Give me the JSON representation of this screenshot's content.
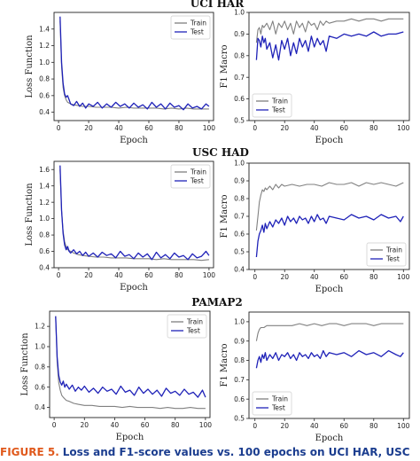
{
  "section_titles": [
    "UCI HAR",
    "USC HAD",
    "PAMAP2"
  ],
  "caption": {
    "label": "FIGURE 5.",
    "text": "Loss and F1-score values vs. 100 epochs on UCI HAR, USC"
  },
  "colors": {
    "train": "#808080",
    "test": "#1f22b8"
  },
  "chart_data": [
    {
      "type": "line",
      "dataset": "UCI HAR",
      "metric": "loss",
      "xlabel": "Epoch",
      "ylabel": "Loss Function",
      "xlim": [
        -3,
        103
      ],
      "ylim": [
        0.3,
        1.6
      ],
      "xticks": [
        0,
        20,
        40,
        60,
        80,
        100
      ],
      "yticks": [
        0.4,
        0.6,
        0.8,
        1.0,
        1.2,
        1.4
      ],
      "legend": "upper right",
      "series": [
        {
          "name": "Train",
          "x": [
            1,
            2,
            3,
            4,
            5,
            6,
            8,
            10,
            13,
            16,
            20,
            25,
            30,
            35,
            40,
            45,
            50,
            55,
            60,
            65,
            70,
            75,
            80,
            85,
            90,
            95,
            100
          ],
          "y": [
            1.5,
            0.95,
            0.7,
            0.6,
            0.55,
            0.52,
            0.5,
            0.49,
            0.48,
            0.47,
            0.47,
            0.46,
            0.46,
            0.46,
            0.45,
            0.46,
            0.45,
            0.45,
            0.45,
            0.45,
            0.44,
            0.45,
            0.44,
            0.45,
            0.44,
            0.44,
            0.44
          ]
        },
        {
          "name": "Test",
          "x": [
            1,
            2,
            3,
            4,
            5,
            6,
            7,
            8,
            10,
            12,
            14,
            16,
            18,
            20,
            23,
            26,
            29,
            32,
            35,
            38,
            41,
            44,
            47,
            50,
            53,
            56,
            59,
            62,
            65,
            68,
            71,
            74,
            77,
            80,
            83,
            86,
            89,
            92,
            95,
            98,
            100
          ],
          "y": [
            1.55,
            1.0,
            0.75,
            0.62,
            0.58,
            0.6,
            0.55,
            0.5,
            0.48,
            0.53,
            0.47,
            0.51,
            0.45,
            0.5,
            0.47,
            0.52,
            0.45,
            0.5,
            0.46,
            0.52,
            0.47,
            0.5,
            0.45,
            0.51,
            0.46,
            0.49,
            0.44,
            0.52,
            0.46,
            0.5,
            0.44,
            0.51,
            0.46,
            0.48,
            0.43,
            0.5,
            0.45,
            0.47,
            0.44,
            0.5,
            0.47
          ]
        }
      ]
    },
    {
      "type": "line",
      "dataset": "UCI HAR",
      "metric": "f1",
      "xlabel": "Epoch",
      "ylabel": "F1 Macro",
      "xlim": [
        -4,
        104
      ],
      "ylim": [
        0.5,
        1.0
      ],
      "xticks": [
        0,
        20,
        40,
        60,
        80,
        100
      ],
      "yticks": [
        0.5,
        0.6,
        0.7,
        0.8,
        0.9,
        1.0
      ],
      "legend": "lower left",
      "series": [
        {
          "name": "Train",
          "x": [
            1,
            2,
            3,
            4,
            5,
            6,
            8,
            10,
            12,
            14,
            16,
            18,
            20,
            22,
            24,
            26,
            28,
            30,
            32,
            34,
            36,
            38,
            40,
            42,
            44,
            46,
            48,
            50,
            55,
            60,
            65,
            70,
            75,
            80,
            85,
            90,
            95,
            100
          ],
          "y": [
            0.86,
            0.92,
            0.93,
            0.9,
            0.94,
            0.93,
            0.95,
            0.92,
            0.96,
            0.9,
            0.95,
            0.93,
            0.96,
            0.92,
            0.95,
            0.9,
            0.96,
            0.93,
            0.95,
            0.91,
            0.96,
            0.94,
            0.95,
            0.92,
            0.96,
            0.94,
            0.96,
            0.95,
            0.96,
            0.96,
            0.97,
            0.96,
            0.97,
            0.97,
            0.96,
            0.97,
            0.97,
            0.97
          ]
        },
        {
          "name": "Test",
          "x": [
            1,
            2,
            3,
            4,
            5,
            6,
            7,
            8,
            10,
            12,
            14,
            16,
            18,
            20,
            22,
            24,
            26,
            28,
            30,
            32,
            34,
            36,
            38,
            40,
            42,
            44,
            46,
            48,
            50,
            55,
            60,
            65,
            70,
            75,
            80,
            85,
            90,
            95,
            100
          ],
          "y": [
            0.78,
            0.88,
            0.87,
            0.84,
            0.89,
            0.86,
            0.88,
            0.83,
            0.86,
            0.79,
            0.85,
            0.78,
            0.87,
            0.83,
            0.88,
            0.8,
            0.86,
            0.81,
            0.88,
            0.84,
            0.87,
            0.82,
            0.89,
            0.84,
            0.88,
            0.85,
            0.87,
            0.82,
            0.89,
            0.88,
            0.9,
            0.89,
            0.9,
            0.89,
            0.91,
            0.89,
            0.9,
            0.9,
            0.91
          ]
        }
      ]
    },
    {
      "type": "line",
      "dataset": "USC HAD",
      "metric": "loss",
      "xlabel": "Epoch",
      "ylabel": "Loss Function",
      "xlim": [
        -3,
        103
      ],
      "ylim": [
        0.4,
        1.7
      ],
      "xticks": [
        0,
        20,
        40,
        60,
        80,
        100
      ],
      "yticks": [
        0.4,
        0.6,
        0.8,
        1.0,
        1.2,
        1.4,
        1.6
      ],
      "legend": "upper right",
      "series": [
        {
          "name": "Train",
          "x": [
            1,
            2,
            3,
            4,
            5,
            6,
            8,
            10,
            13,
            16,
            20,
            25,
            30,
            35,
            40,
            45,
            50,
            55,
            60,
            65,
            70,
            75,
            80,
            85,
            90,
            95,
            100
          ],
          "y": [
            1.6,
            1.1,
            0.85,
            0.72,
            0.66,
            0.62,
            0.6,
            0.58,
            0.56,
            0.55,
            0.54,
            0.53,
            0.53,
            0.52,
            0.52,
            0.52,
            0.51,
            0.51,
            0.51,
            0.5,
            0.51,
            0.5,
            0.5,
            0.5,
            0.5,
            0.49,
            0.5
          ]
        },
        {
          "name": "Test",
          "x": [
            1,
            2,
            3,
            4,
            5,
            6,
            7,
            8,
            10,
            12,
            14,
            16,
            18,
            20,
            23,
            26,
            29,
            32,
            35,
            38,
            41,
            44,
            47,
            50,
            53,
            56,
            59,
            62,
            65,
            68,
            71,
            74,
            77,
            80,
            83,
            86,
            89,
            92,
            95,
            98,
            100
          ],
          "y": [
            1.65,
            1.1,
            0.82,
            0.68,
            0.62,
            0.66,
            0.6,
            0.58,
            0.62,
            0.57,
            0.6,
            0.55,
            0.59,
            0.54,
            0.58,
            0.53,
            0.59,
            0.55,
            0.57,
            0.52,
            0.6,
            0.54,
            0.56,
            0.51,
            0.58,
            0.53,
            0.57,
            0.5,
            0.59,
            0.52,
            0.56,
            0.51,
            0.58,
            0.53,
            0.55,
            0.5,
            0.57,
            0.52,
            0.54,
            0.6,
            0.55
          ]
        }
      ]
    },
    {
      "type": "line",
      "dataset": "USC HAD",
      "metric": "f1",
      "xlabel": "Epoch",
      "ylabel": "F1 Macro",
      "xlim": [
        -4,
        104
      ],
      "ylim": [
        0.4,
        1.0
      ],
      "xticks": [
        0,
        20,
        40,
        60,
        80,
        100
      ],
      "yticks": [
        0.4,
        0.5,
        0.6,
        0.7,
        0.8,
        0.9,
        1.0
      ],
      "legend": "lower right",
      "series": [
        {
          "name": "Train",
          "x": [
            1,
            2,
            3,
            4,
            5,
            6,
            7,
            8,
            10,
            12,
            14,
            16,
            18,
            20,
            25,
            30,
            35,
            40,
            45,
            50,
            55,
            60,
            65,
            70,
            75,
            80,
            85,
            90,
            95,
            100
          ],
          "y": [
            0.62,
            0.7,
            0.78,
            0.82,
            0.85,
            0.84,
            0.86,
            0.85,
            0.87,
            0.85,
            0.88,
            0.86,
            0.88,
            0.87,
            0.88,
            0.87,
            0.88,
            0.88,
            0.87,
            0.89,
            0.88,
            0.88,
            0.89,
            0.87,
            0.89,
            0.88,
            0.89,
            0.88,
            0.87,
            0.89
          ]
        },
        {
          "name": "Test",
          "x": [
            1,
            2,
            3,
            4,
            5,
            6,
            7,
            8,
            10,
            12,
            14,
            16,
            18,
            20,
            22,
            24,
            26,
            28,
            30,
            32,
            34,
            36,
            38,
            40,
            42,
            44,
            46,
            48,
            50,
            55,
            60,
            65,
            70,
            75,
            80,
            85,
            90,
            95,
            98,
            100
          ],
          "y": [
            0.47,
            0.56,
            0.6,
            0.62,
            0.65,
            0.61,
            0.66,
            0.63,
            0.67,
            0.64,
            0.68,
            0.66,
            0.69,
            0.65,
            0.7,
            0.67,
            0.69,
            0.66,
            0.7,
            0.68,
            0.69,
            0.66,
            0.7,
            0.67,
            0.71,
            0.68,
            0.69,
            0.66,
            0.7,
            0.69,
            0.68,
            0.71,
            0.69,
            0.7,
            0.68,
            0.71,
            0.69,
            0.7,
            0.67,
            0.7
          ]
        }
      ]
    },
    {
      "type": "line",
      "dataset": "PAMAP2",
      "metric": "loss",
      "xlabel": "Epoch",
      "ylabel": "Loss Function",
      "xlim": [
        -3,
        103
      ],
      "ylim": [
        0.3,
        1.35
      ],
      "xticks": [
        0,
        20,
        40,
        60,
        80,
        100
      ],
      "yticks": [
        0.4,
        0.6,
        0.8,
        1.0,
        1.2
      ],
      "legend": "upper right",
      "series": [
        {
          "name": "Train",
          "x": [
            1,
            2,
            3,
            4,
            5,
            6,
            8,
            10,
            13,
            16,
            20,
            25,
            30,
            35,
            40,
            45,
            50,
            55,
            60,
            65,
            70,
            75,
            80,
            85,
            90,
            95,
            100
          ],
          "y": [
            1.3,
            0.85,
            0.65,
            0.57,
            0.52,
            0.5,
            0.47,
            0.46,
            0.44,
            0.43,
            0.42,
            0.42,
            0.41,
            0.41,
            0.41,
            0.4,
            0.41,
            0.4,
            0.4,
            0.4,
            0.39,
            0.4,
            0.39,
            0.39,
            0.4,
            0.39,
            0.39
          ]
        },
        {
          "name": "Test",
          "x": [
            1,
            2,
            3,
            4,
            5,
            6,
            7,
            8,
            10,
            12,
            14,
            16,
            18,
            20,
            23,
            26,
            29,
            32,
            35,
            38,
            41,
            44,
            47,
            50,
            53,
            56,
            59,
            62,
            65,
            68,
            71,
            74,
            77,
            80,
            83,
            86,
            89,
            92,
            95,
            98,
            100
          ],
          "y": [
            1.3,
            0.9,
            0.72,
            0.65,
            0.62,
            0.66,
            0.6,
            0.63,
            0.58,
            0.62,
            0.56,
            0.6,
            0.57,
            0.61,
            0.55,
            0.59,
            0.54,
            0.6,
            0.56,
            0.58,
            0.53,
            0.61,
            0.55,
            0.57,
            0.52,
            0.6,
            0.54,
            0.58,
            0.53,
            0.57,
            0.51,
            0.59,
            0.54,
            0.56,
            0.52,
            0.58,
            0.53,
            0.55,
            0.5,
            0.57,
            0.5
          ]
        }
      ]
    },
    {
      "type": "line",
      "dataset": "PAMAP2",
      "metric": "f1",
      "xlabel": "Epoch",
      "ylabel": "F1 Macro",
      "xlim": [
        -4,
        104
      ],
      "ylim": [
        0.5,
        1.05
      ],
      "xticks": [
        0,
        20,
        40,
        60,
        80,
        100
      ],
      "yticks": [
        0.5,
        0.6,
        0.7,
        0.8,
        0.9,
        1.0
      ],
      "legend": "lower left",
      "series": [
        {
          "name": "Train",
          "x": [
            1,
            2,
            3,
            4,
            5,
            6,
            8,
            10,
            13,
            16,
            20,
            25,
            30,
            35,
            40,
            45,
            50,
            55,
            60,
            65,
            70,
            75,
            80,
            85,
            90,
            95,
            100
          ],
          "y": [
            0.9,
            0.94,
            0.96,
            0.97,
            0.97,
            0.97,
            0.98,
            0.98,
            0.98,
            0.98,
            0.98,
            0.98,
            0.99,
            0.98,
            0.99,
            0.98,
            0.99,
            0.99,
            0.98,
            0.99,
            0.99,
            0.99,
            0.98,
            0.99,
            0.99,
            0.99,
            0.99
          ]
        },
        {
          "name": "Test",
          "x": [
            1,
            2,
            3,
            4,
            5,
            6,
            7,
            8,
            10,
            12,
            14,
            16,
            18,
            20,
            22,
            24,
            26,
            28,
            30,
            32,
            34,
            36,
            38,
            40,
            42,
            44,
            46,
            48,
            50,
            55,
            60,
            65,
            70,
            75,
            80,
            85,
            90,
            95,
            98,
            100
          ],
          "y": [
            0.76,
            0.8,
            0.82,
            0.79,
            0.83,
            0.81,
            0.84,
            0.8,
            0.83,
            0.81,
            0.84,
            0.8,
            0.83,
            0.82,
            0.84,
            0.81,
            0.83,
            0.8,
            0.84,
            0.82,
            0.83,
            0.81,
            0.84,
            0.82,
            0.83,
            0.81,
            0.85,
            0.82,
            0.84,
            0.83,
            0.84,
            0.82,
            0.85,
            0.83,
            0.84,
            0.82,
            0.85,
            0.83,
            0.82,
            0.84
          ]
        }
      ]
    }
  ]
}
